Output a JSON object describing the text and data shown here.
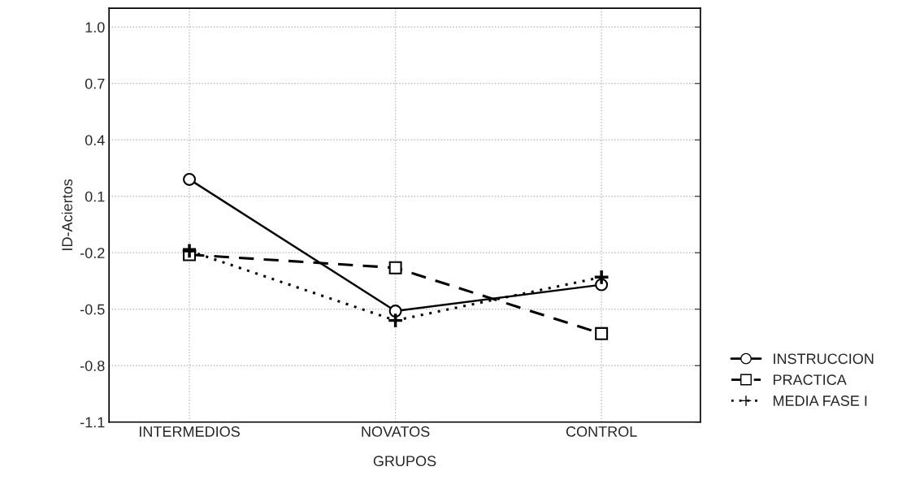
{
  "chart_data": {
    "type": "line",
    "xlabel": "GRUPOS",
    "ylabel": "ID-Aciertos",
    "categories": [
      "INTERMEDIOS",
      "NOVATOS",
      "CONTROL"
    ],
    "series": [
      {
        "name": "INSTRUCCION",
        "color": "#000000",
        "marker": "circle",
        "line_style": "solid",
        "values": [
          0.19,
          -0.51,
          -0.37
        ]
      },
      {
        "name": "PRACTICA",
        "color": "#000000",
        "marker": "square",
        "line_style": "dashed",
        "values": [
          -0.21,
          -0.28,
          -0.63
        ]
      },
      {
        "name": "MEDIA FASE I",
        "color": "#000000",
        "marker": "cross",
        "line_style": "dotted",
        "values": [
          -0.19,
          -0.56,
          -0.33
        ]
      }
    ],
    "ylim": [
      -1.1,
      1.1
    ],
    "yticks": [
      {
        "value": 1.0,
        "label": "1.0"
      },
      0.7,
      0.4,
      0.1,
      -0.2,
      -0.5,
      -0.8,
      -1.1
    ],
    "grid": true,
    "legend": "bottom right"
  }
}
